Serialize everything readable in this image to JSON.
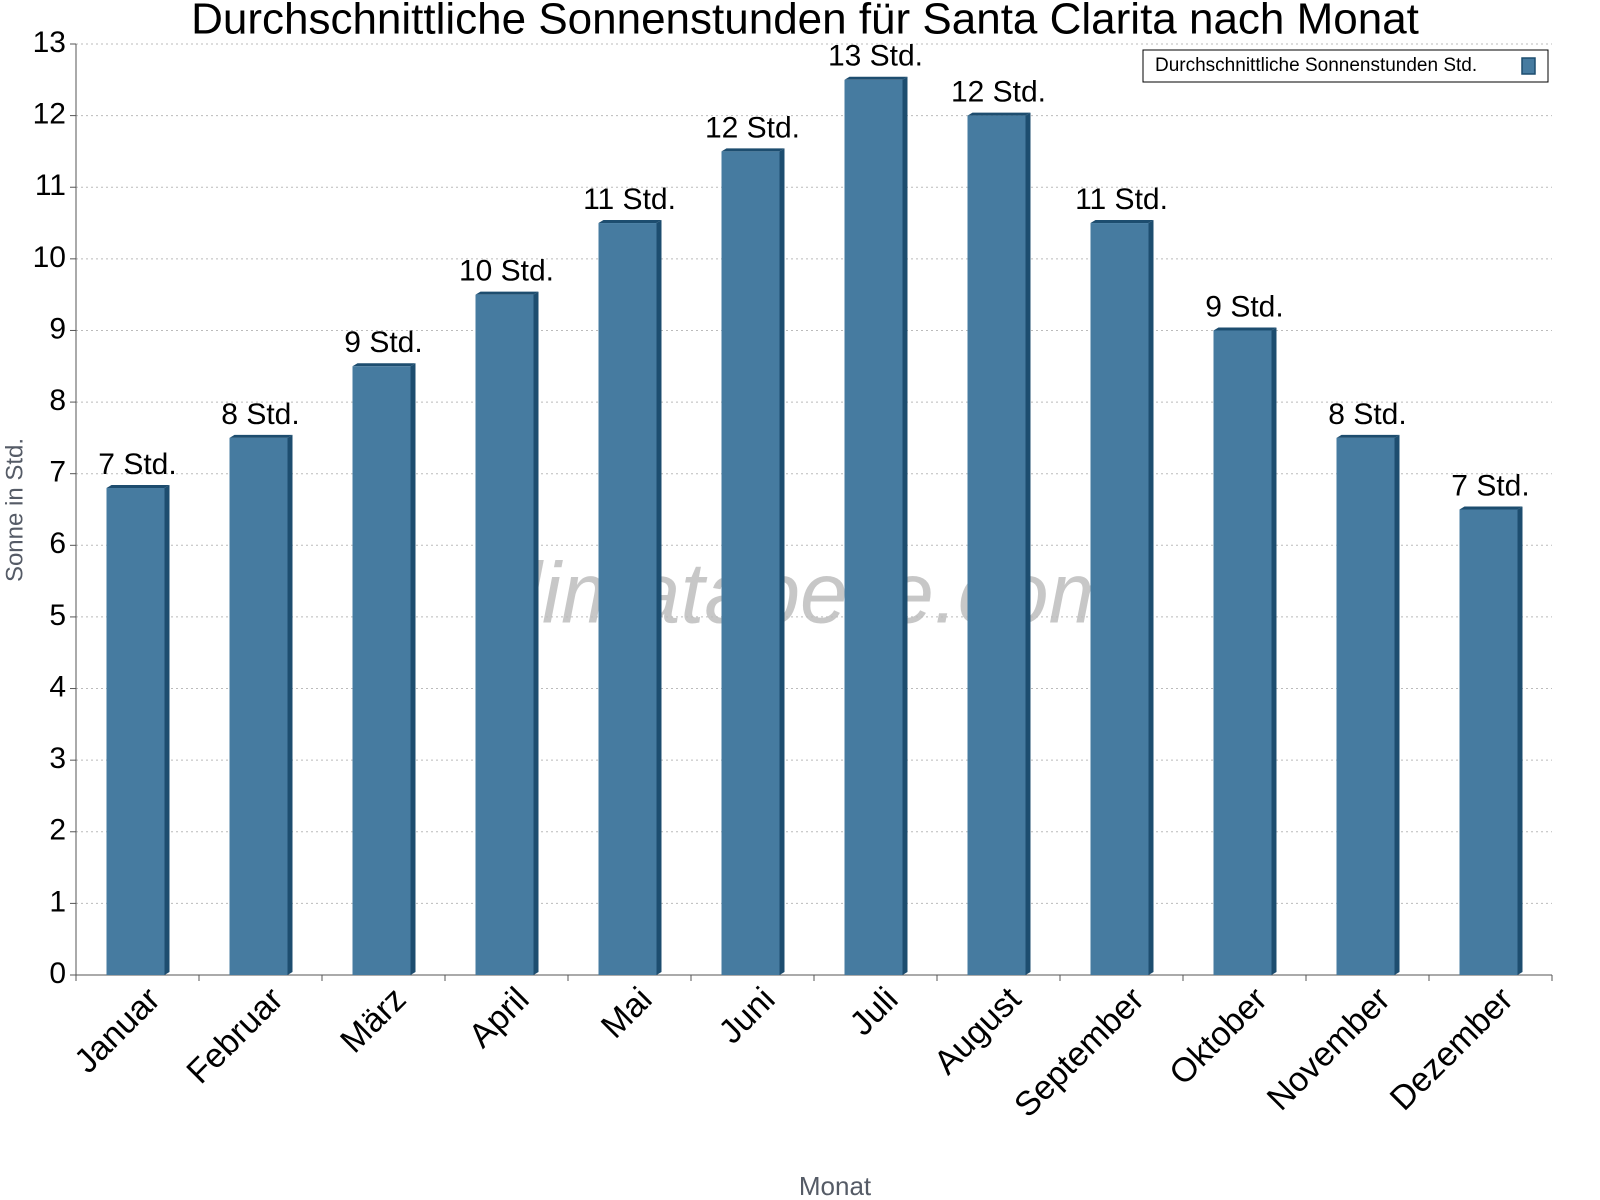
{
  "chart_data": {
    "type": "bar",
    "title": "Durchschnittliche Sonnenstunden für Santa Clarita nach Monat",
    "x_label": "Monat",
    "y_label": "Sonne in Std.",
    "watermark": "klimatabelle.com",
    "categories": [
      "Januar",
      "Februar",
      "März",
      "April",
      "Mai",
      "Juni",
      "Juli",
      "August",
      "September",
      "Oktober",
      "November",
      "Dezember"
    ],
    "series": [
      {
        "name": "Durchschnittliche Sonnenstunden Std.",
        "color": "#467ba0",
        "values": [
          6.8,
          7.5,
          8.5,
          9.5,
          10.5,
          11.5,
          12.5,
          12.0,
          10.5,
          9.0,
          7.5,
          6.5
        ],
        "value_labels": [
          "7 Std.",
          "8 Std.",
          "9 Std.",
          "10 Std.",
          "11 Std.",
          "12 Std.",
          "13 Std.",
          "12 Std.",
          "11 Std.",
          "9 Std.",
          "8 Std.",
          "7 Std."
        ]
      }
    ],
    "ylim": [
      0,
      13
    ],
    "yticks": [
      0,
      1,
      2,
      3,
      4,
      5,
      6,
      7,
      8,
      9,
      10,
      11,
      12,
      13
    ],
    "grid": true,
    "legend": "upper right"
  }
}
